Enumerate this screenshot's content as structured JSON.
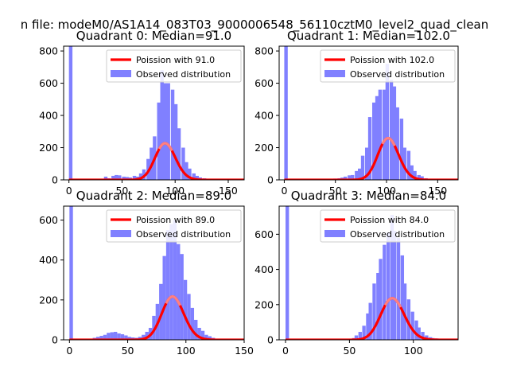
{
  "figure": {
    "suptitle": "n file: modeM0/AS1A14_083T03_9000006548_56110cztM0_level2_quad_clean"
  },
  "colors": {
    "hist": "#8080ff",
    "curve": "#ff0000",
    "curve_peak": "#ff8080"
  },
  "chart_data": [
    {
      "type": "bar",
      "title": "Quadrant 0: Median=91.0",
      "median": 91.0,
      "xlim": [
        -5,
        165
      ],
      "ylim": [
        0,
        830
      ],
      "xticks": [
        0,
        50,
        100,
        150
      ],
      "yticks": [
        0,
        200,
        400,
        600,
        800
      ],
      "legend": {
        "position": "top-right",
        "entries": [
          "Poission with 91.0",
          "Observed distribution"
        ]
      },
      "bin_width": 3.3,
      "hist": {
        "x": [
          0,
          33,
          36,
          40,
          43,
          46,
          50,
          53,
          56,
          60,
          63,
          66,
          69,
          73,
          76,
          79,
          83,
          86,
          89,
          92,
          96,
          99,
          102,
          106,
          109,
          112,
          116,
          119,
          122,
          126
        ],
        "counts": [
          850,
          20,
          10,
          25,
          30,
          28,
          20,
          18,
          15,
          25,
          20,
          40,
          65,
          130,
          200,
          270,
          480,
          680,
          600,
          600,
          560,
          470,
          320,
          200,
          110,
          70,
          40,
          25,
          15,
          10
        ]
      },
      "poisson": {
        "lambda": 91.0,
        "total": 5440
      }
    },
    {
      "type": "bar",
      "title": "Quadrant 1: Median=102.0",
      "median": 102.0,
      "xlim": [
        -5,
        170
      ],
      "ylim": [
        0,
        830
      ],
      "xticks": [
        0,
        50,
        100,
        150
      ],
      "yticks": [
        0,
        200,
        400,
        600,
        800
      ],
      "legend": {
        "position": "top-right",
        "entries": [
          "Poission with 102.0",
          "Observed distribution"
        ]
      },
      "bin_width": 3.4,
      "hist": {
        "x": [
          0,
          48,
          52,
          55,
          58,
          62,
          65,
          69,
          72,
          75,
          79,
          82,
          86,
          89,
          92,
          96,
          99,
          103,
          106,
          109,
          113,
          116,
          120,
          123,
          126,
          130,
          133,
          137
        ],
        "counts": [
          850,
          8,
          10,
          14,
          20,
          28,
          30,
          55,
          70,
          150,
          200,
          390,
          480,
          520,
          560,
          560,
          720,
          620,
          580,
          450,
          380,
          200,
          180,
          90,
          55,
          30,
          22,
          10
        ]
      },
      "poisson": {
        "lambda": 102.0,
        "total": 6560
      }
    },
    {
      "type": "bar",
      "title": "Quadrant 2: Median=89.0",
      "median": 89.0,
      "xlim": [
        -5,
        150
      ],
      "ylim": [
        0,
        670
      ],
      "xticks": [
        0,
        50,
        100,
        150
      ],
      "yticks": [
        0,
        200,
        400,
        600
      ],
      "legend": {
        "position": "top-right",
        "entries": [
          "Poission with 89.0",
          "Observed distribution"
        ]
      },
      "bin_width": 3.0,
      "hist": {
        "x": [
          0,
          20,
          23,
          26,
          29,
          32,
          35,
          38,
          41,
          44,
          47,
          50,
          53,
          56,
          59,
          62,
          65,
          68,
          71,
          74,
          77,
          80,
          83,
          86,
          89,
          92,
          95,
          98,
          101,
          104,
          107,
          110,
          113,
          116,
          119,
          122
        ],
        "counts": [
          700,
          10,
          15,
          20,
          25,
          35,
          38,
          40,
          32,
          28,
          22,
          15,
          12,
          10,
          15,
          25,
          40,
          60,
          120,
          180,
          280,
          420,
          550,
          580,
          600,
          480,
          430,
          300,
          230,
          160,
          100,
          60,
          45,
          25,
          18,
          10
        ]
      },
      "poisson": {
        "lambda": 89.0,
        "total": 5130
      }
    },
    {
      "type": "bar",
      "title": "Quadrant 3: Median=84.0",
      "median": 84.0,
      "xlim": [
        -5,
        135
      ],
      "ylim": [
        0,
        760
      ],
      "xticks": [
        0,
        50,
        100
      ],
      "yticks": [
        0,
        200,
        400,
        600
      ],
      "legend": {
        "position": "top-right",
        "entries": [
          "Poission with 84.0",
          "Observed distribution"
        ]
      },
      "bin_width": 2.7,
      "hist": {
        "x": [
          0,
          52,
          54,
          57,
          60,
          63,
          65,
          68,
          71,
          73,
          76,
          79,
          82,
          84,
          87,
          90,
          92,
          95,
          98,
          101,
          103,
          106,
          109,
          112,
          114,
          117
        ],
        "counts": [
          780,
          10,
          25,
          45,
          80,
          150,
          210,
          320,
          380,
          460,
          540,
          610,
          710,
          620,
          580,
          480,
          320,
          230,
          160,
          110,
          70,
          45,
          25,
          15,
          10,
          8
        ]
      },
      "poisson": {
        "lambda": 84.0,
        "total": 5440
      }
    }
  ]
}
